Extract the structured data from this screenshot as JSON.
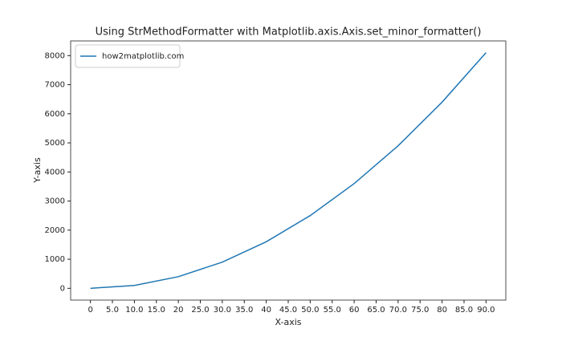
{
  "chart_data": {
    "type": "line",
    "title": "Using StrMethodFormatter with Matplotlib.axis.Axis.set_minor_formatter()",
    "xlabel": "X-axis",
    "ylabel": "Y-axis",
    "x": [
      0,
      10,
      20,
      30,
      40,
      50,
      60,
      70,
      80,
      90
    ],
    "series": [
      {
        "name": "how2matplotlib.com",
        "color": "#1f77b4",
        "values": [
          0,
          100,
          400,
          900,
          1600,
          2500,
          3600,
          4900,
          6400,
          8100
        ]
      }
    ],
    "xlim": [
      -4.5,
      94.5
    ],
    "ylim": [
      -405,
      8505
    ],
    "xticks": [
      0,
      {
        "value": 5,
        "label": "5.0"
      },
      {
        "value": 10,
        "label": "10.0"
      },
      {
        "value": 15,
        "label": "15.0"
      },
      20,
      {
        "value": 25,
        "label": "25.0"
      },
      {
        "value": 30,
        "label": "30.0"
      },
      {
        "value": 35,
        "label": "35.0"
      },
      40,
      {
        "value": 45,
        "label": "45.0"
      },
      {
        "value": 50,
        "label": "50.0"
      },
      {
        "value": 55,
        "label": "55.0"
      },
      60,
      {
        "value": 65,
        "label": "65.0"
      },
      {
        "value": 70,
        "label": "70.0"
      },
      {
        "value": 75,
        "label": "75.0"
      },
      80,
      {
        "value": 85,
        "label": "85.0"
      },
      {
        "value": 90,
        "label": "90.0"
      }
    ],
    "yticks": [
      0,
      1000,
      2000,
      3000,
      4000,
      5000,
      6000,
      7000,
      8000
    ],
    "grid": false,
    "legend": "upper left"
  }
}
